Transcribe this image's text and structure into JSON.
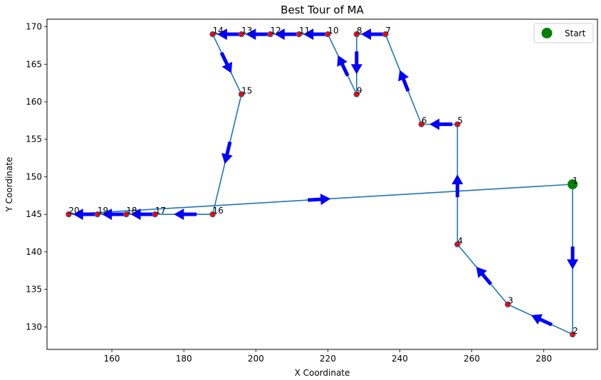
{
  "chart_data": {
    "type": "scatter",
    "title": "Best Tour of MA",
    "xlabel": "X Coordinate",
    "ylabel": "Y Coordinate",
    "xlim": [
      141.98,
      294.9
    ],
    "ylim": [
      127.0,
      171.0
    ],
    "xticks": [
      160,
      180,
      200,
      220,
      240,
      260,
      280
    ],
    "yticks": [
      130,
      135,
      140,
      145,
      150,
      155,
      160,
      165,
      170
    ],
    "grid": false,
    "legend": {
      "position": "top-right",
      "entries": [
        {
          "name": "Start",
          "color": "#008000"
        }
      ]
    },
    "colors": {
      "tour_line": "#1f77b4",
      "point_fill": "#ff0000",
      "point_edge": "#1f77b4",
      "arrow": "#0000ff",
      "start": "#008000"
    },
    "tour": [
      {
        "label": "1",
        "x": 288,
        "y": 149
      },
      {
        "label": "2",
        "x": 288,
        "y": 129
      },
      {
        "label": "3",
        "x": 270,
        "y": 133
      },
      {
        "label": "4",
        "x": 256,
        "y": 141
      },
      {
        "label": "5",
        "x": 256,
        "y": 157
      },
      {
        "label": "6",
        "x": 246,
        "y": 157
      },
      {
        "label": "7",
        "x": 236,
        "y": 169
      },
      {
        "label": "8",
        "x": 228,
        "y": 169
      },
      {
        "label": "9",
        "x": 228,
        "y": 161
      },
      {
        "label": "10",
        "x": 220,
        "y": 169
      },
      {
        "label": "11",
        "x": 212,
        "y": 169
      },
      {
        "label": "12",
        "x": 204,
        "y": 169
      },
      {
        "label": "13",
        "x": 196,
        "y": 169
      },
      {
        "label": "14",
        "x": 188,
        "y": 169
      },
      {
        "label": "15",
        "x": 196,
        "y": 161
      },
      {
        "label": "16",
        "x": 188,
        "y": 145
      },
      {
        "label": "17",
        "x": 172,
        "y": 145
      },
      {
        "label": "18",
        "x": 164,
        "y": 145
      },
      {
        "label": "19",
        "x": 156,
        "y": 145
      },
      {
        "label": "20",
        "x": 148,
        "y": 145
      }
    ],
    "returns_to_start": true
  }
}
